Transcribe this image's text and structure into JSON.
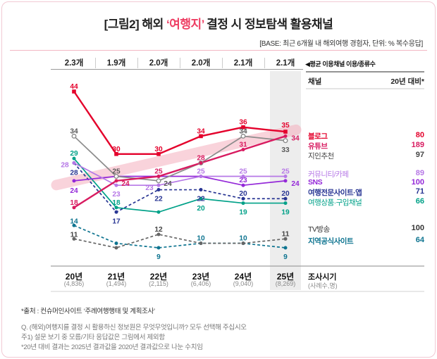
{
  "header": {
    "title_prefix": "[그림2] 해외 ",
    "title_highlight": "‘여행지’",
    "title_suffix": " 결정 시 정보탐색 활용채널",
    "highlight_color": "#ee3e63",
    "base_note": "[BASE: 최근 6개월 내 해외여행 경험자, 단위: % 복수응답]"
  },
  "avg_row": {
    "label": "◀평균 이용채널 이용/종류수",
    "values": [
      "2.3개",
      "1.9개",
      "2.0개",
      "2.0개",
      "2.1개",
      "2.1개"
    ]
  },
  "legend_panel": {
    "channel_header": "채널",
    "index_header": "20년 대비*",
    "rows": [
      {
        "label": "블로그",
        "value": "80",
        "color": "#e4002b",
        "bold": true
      },
      {
        "label": "유튜브",
        "value": "189",
        "color": "#d81b60",
        "bold": true
      },
      {
        "label": "지인추천",
        "value": "97",
        "color": "#444444",
        "bold": false
      },
      {
        "label": "커뮤니티/카페",
        "value": "89",
        "color": "#b678e6",
        "bold": false
      },
      {
        "label": "SNS",
        "value": "100",
        "color": "#9428d8",
        "bold": true
      },
      {
        "label": "여행전문사이트·앱",
        "value": "71",
        "color": "#283593",
        "bold": true
      },
      {
        "label": "여행상품·구입채널",
        "value": "66",
        "color": "#00a188",
        "bold": false
      },
      {
        "label": "TV방송",
        "value": "100",
        "color": "#333333",
        "bold": false
      },
      {
        "label": "지역공식사이트",
        "value": "64",
        "color": "#0e7490",
        "bold": true
      }
    ]
  },
  "chart_data": {
    "type": "line",
    "categories": [
      "20년",
      "21년",
      "22년",
      "23년",
      "24년",
      "25년"
    ],
    "sample_sizes": [
      "(4,836)",
      "(1,494)",
      "(2,115)",
      "(6,406)",
      "(9,040)",
      "(8,269)"
    ],
    "ylim": [
      5,
      48
    ],
    "grid": false,
    "legend_position": "right",
    "highlight_column": "25년",
    "highlight_band_color": "#ededed",
    "trend_band": {
      "color": "#f5a8b8",
      "from_value": 24,
      "to_value": 34
    },
    "series": [
      {
        "name": "블로그",
        "color": "#e4002b",
        "dash": false,
        "marker": "square",
        "values": [
          44,
          30,
          30,
          34,
          36,
          35
        ]
      },
      {
        "name": "유튜브",
        "color": "#d81b60",
        "dash": false,
        "marker": "circle",
        "values": [
          18,
          24,
          25,
          28,
          31,
          34
        ]
      },
      {
        "name": "지인추천",
        "color": "#8c8c8c",
        "label_color": "#595959",
        "dash": false,
        "marker": "open-circle",
        "values": [
          34,
          25,
          24,
          28,
          34,
          33
        ]
      },
      {
        "name": "커뮤니티/카페",
        "color": "#b678e6",
        "dash": false,
        "marker": "circle",
        "values": [
          28,
          23,
          23,
          25,
          25,
          25
        ]
      },
      {
        "name": "SNS",
        "color": "#9428d8",
        "dash": false,
        "marker": "circle",
        "values": [
          24,
          25,
          25,
          25,
          23,
          24
        ]
      },
      {
        "name": "여행전문사이트·앱",
        "color": "#283593",
        "dash": true,
        "marker": "circle",
        "values": [
          28,
          17,
          22,
          22,
          20,
          20
        ]
      },
      {
        "name": "여행상품·구입채널",
        "color": "#00a188",
        "dash": false,
        "marker": "circle",
        "values": [
          29,
          18,
          17,
          20,
          19,
          19
        ]
      },
      {
        "name": "TV방송",
        "color": "#666666",
        "label_color": "#444444",
        "dash": true,
        "marker": "circle",
        "values": [
          11,
          9,
          12,
          10,
          10,
          11
        ]
      },
      {
        "name": "지역공식사이트",
        "color": "#0e7490",
        "dash": true,
        "marker": "circle",
        "values": [
          14,
          10,
          9,
          10,
          10,
          9
        ]
      }
    ]
  },
  "x_axis": {
    "survey_time_label": "조사시기",
    "sample_size_label": "(사례수,명)"
  },
  "footnotes": [
    "*출처 : 컨슈머인사이트 ‘주례여행행태 및 계획조사’",
    "Q. (해외)여행지를 결정 시 활용하신 정보원은 무엇무엇입니까? 모두 선택해 주십시오",
    "주1) 설문 보기 중 모름/기타 응답값은 그림에서 제외함",
    "*20년 대비 결과는 2025년 결과값을 2020년 결과값으로 나눈 수치임"
  ]
}
